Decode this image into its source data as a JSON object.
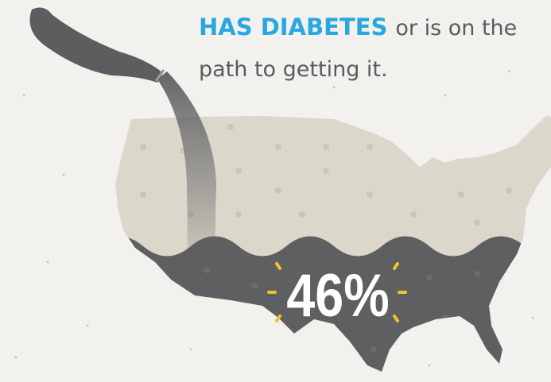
{
  "headline": {
    "highlight": "HAS DIABETES",
    "rest_line1": "or is on the",
    "line2": "path to getting it."
  },
  "stat": "46%"
}
